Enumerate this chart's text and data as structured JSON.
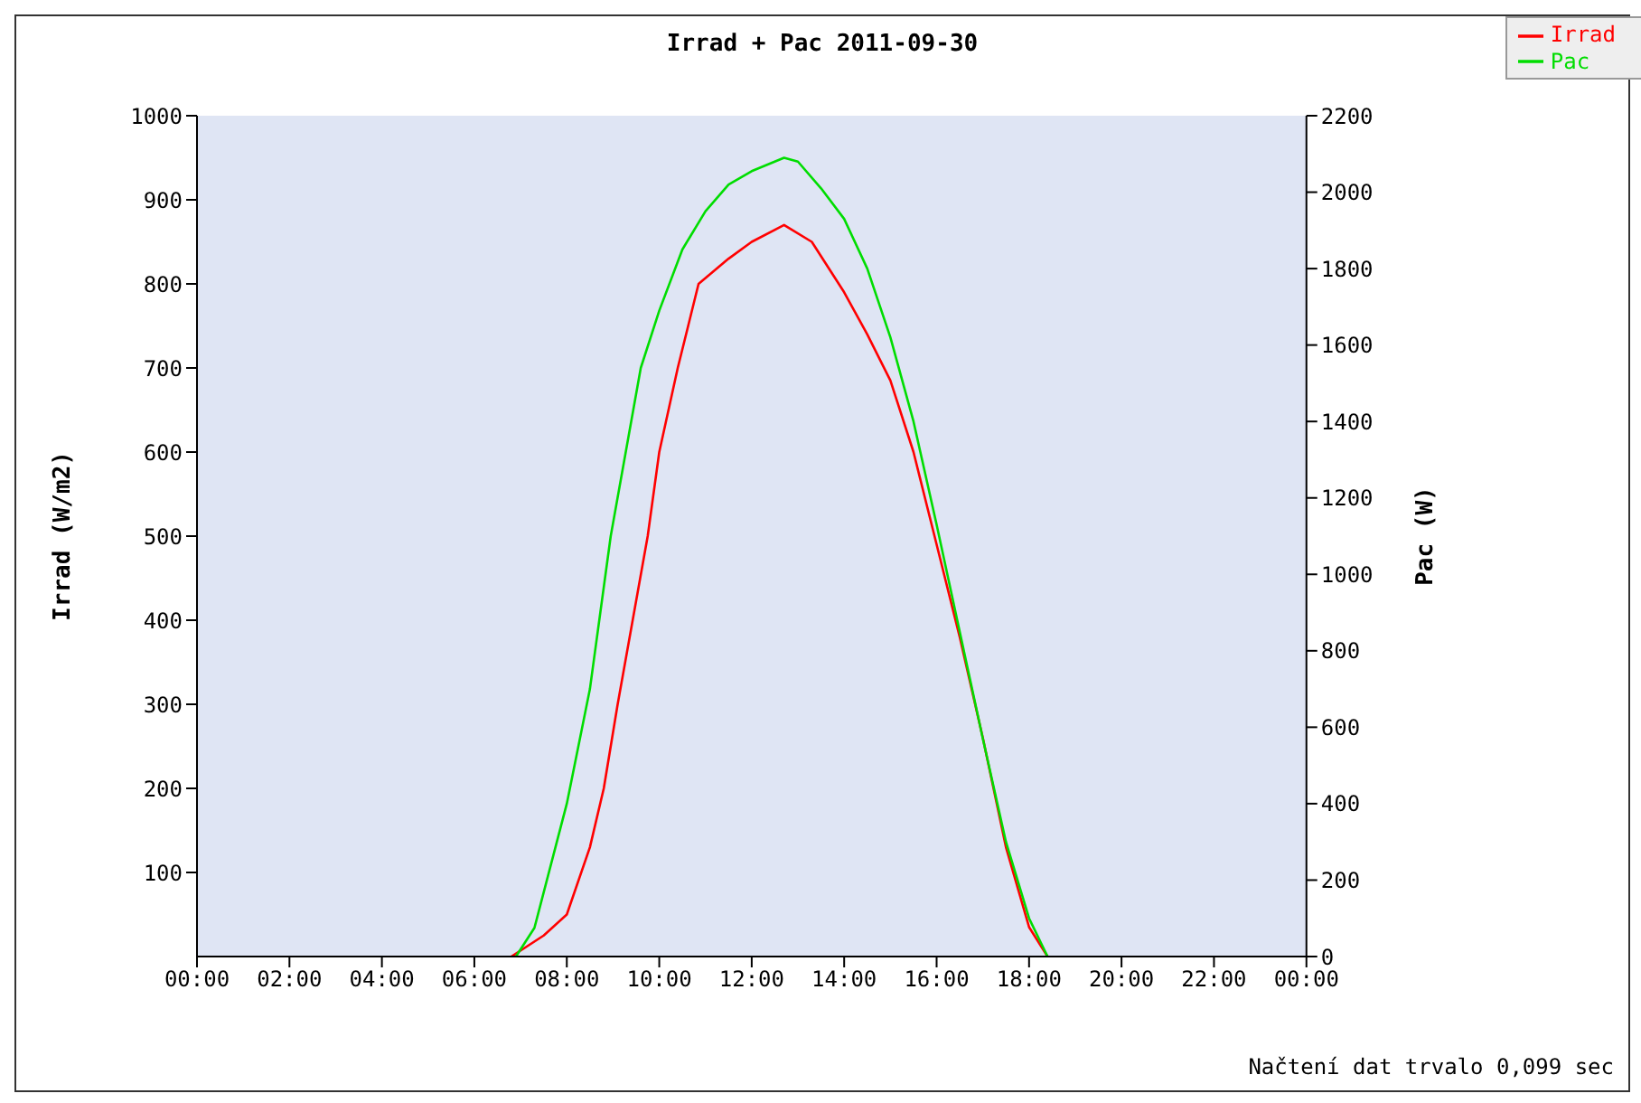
{
  "chart_data": {
    "type": "line",
    "title": "Irrad + Pac 2011-09-30",
    "ylabel": "Irrad (W/m2)",
    "y2label": "Pac (W)",
    "annotations": [
      "Načtení dat trvalo 0,099 sec"
    ],
    "xlim": [
      0,
      24
    ],
    "xticks": [
      {
        "value": 0,
        "label": "00:00"
      },
      {
        "value": 2,
        "label": "02:00"
      },
      {
        "value": 4,
        "label": "04:00"
      },
      {
        "value": 6,
        "label": "06:00"
      },
      {
        "value": 8,
        "label": "08:00"
      },
      {
        "value": 10,
        "label": "10:00"
      },
      {
        "value": 12,
        "label": "12:00"
      },
      {
        "value": 14,
        "label": "14:00"
      },
      {
        "value": 16,
        "label": "16:00"
      },
      {
        "value": 18,
        "label": "18:00"
      },
      {
        "value": 20,
        "label": "20:00"
      },
      {
        "value": 22,
        "label": "22:00"
      },
      {
        "value": 24,
        "label": "00:00"
      }
    ],
    "ylim": [
      0,
      1000
    ],
    "yticks": [
      100,
      200,
      300,
      400,
      500,
      600,
      700,
      800,
      900,
      1000
    ],
    "y2lim": [
      0,
      2200
    ],
    "y2ticks": [
      0,
      200,
      400,
      600,
      800,
      1000,
      1200,
      1400,
      1600,
      1800,
      2000,
      2200
    ],
    "legend": "top right",
    "marker": "none",
    "series": [
      {
        "name": "Irrad",
        "color": "#ff0000",
        "x": [
          6.8,
          7.5,
          8,
          8.5,
          8.8,
          9.1,
          9.75,
          10,
          10.4,
          10.85,
          11.5,
          12,
          12.7,
          13.3,
          14,
          14.5,
          15,
          15.5,
          16,
          16.5,
          17,
          17.5,
          18,
          18.4
        ],
        "values": [
          0,
          25,
          50,
          130,
          200,
          300,
          500,
          600,
          700,
          800,
          830,
          850,
          870,
          850,
          790,
          740,
          685,
          600,
          490,
          380,
          260,
          130,
          35,
          0
        ]
      },
      {
        "name": "Pac",
        "color": "#00dd00",
        "axis": "y2",
        "x": [
          6.9,
          7.3,
          8,
          8.5,
          8.95,
          9.6,
          10,
          10.5,
          11,
          11.5,
          12,
          12.7,
          13,
          13.5,
          14,
          14.5,
          15,
          15.5,
          16,
          16.5,
          17,
          17.5,
          18,
          18.4
        ],
        "values": [
          0,
          75,
          400,
          700,
          1100,
          1540,
          1690,
          1850,
          1950,
          2020,
          2055,
          2090,
          2080,
          2010,
          1930,
          1800,
          1620,
          1400,
          1130,
          850,
          570,
          300,
          100,
          0
        ]
      }
    ]
  }
}
